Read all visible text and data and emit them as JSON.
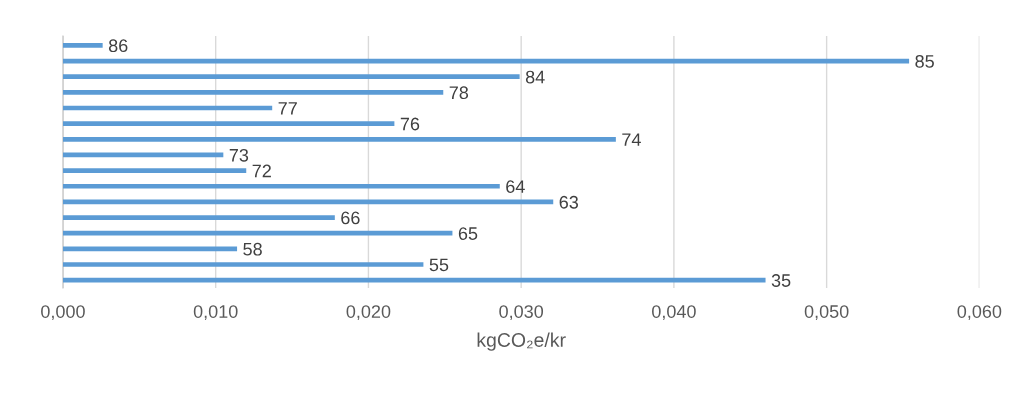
{
  "chart_data": {
    "type": "bar",
    "orientation": "horizontal",
    "xlabel": "kgCO₂e/kr",
    "categories": [
      "86",
      "85",
      "84",
      "78",
      "77",
      "76",
      "74",
      "73",
      "72",
      "64",
      "63",
      "66",
      "65",
      "58",
      "55",
      "35"
    ],
    "series": [
      {
        "color": "#5b9bd5",
        "values": [
          0.0026,
          0.0554,
          0.0299,
          0.0249,
          0.0137,
          0.0217,
          0.0362,
          0.0105,
          0.012,
          0.0286,
          0.0321,
          0.0178,
          0.0255,
          0.0114,
          0.0236,
          0.046
        ]
      }
    ],
    "xlim": [
      0,
      0.06
    ],
    "xticks": [
      {
        "value": 0,
        "label": "0,000"
      },
      {
        "value": 0.01,
        "label": "0,010"
      },
      {
        "value": 0.02,
        "label": "0,020"
      },
      {
        "value": 0.03,
        "label": "0,030"
      },
      {
        "value": 0.04,
        "label": "0,040"
      },
      {
        "value": 0.05,
        "label": "0,050"
      },
      {
        "value": 0.06,
        "label": "0,060"
      }
    ],
    "grid": "x",
    "legend": false
  }
}
